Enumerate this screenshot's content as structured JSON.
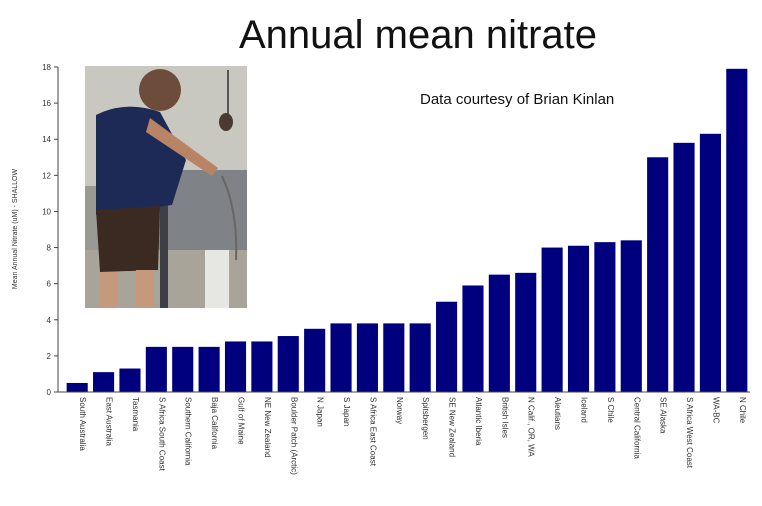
{
  "colors": {
    "bar": "#00007f",
    "axis": "#444444"
  },
  "chart_data": {
    "type": "bar",
    "title": "Annual mean nitrate",
    "annotation": "Data courtesy of Brian Kinlan",
    "ylabel": "Mean Annual Nitrate (uM) - SHALLOW",
    "xlabel": "",
    "ylim": [
      0,
      18
    ],
    "yticks": [
      0,
      2,
      4,
      6,
      8,
      10,
      12,
      14,
      16,
      18
    ],
    "grid": false,
    "categories": [
      "South Australia",
      "East Australia",
      "Tasmania",
      "S Africa South Coast",
      "Southern California",
      "Baja California",
      "Gulf of Maine",
      "NE New Zealand",
      "Boulder Patch (Arctic)",
      "N Japan",
      "S Japan",
      "S Africa East Coast",
      "Norway",
      "Spitsbergen",
      "SE New Zealand",
      "Atlantic Iberia",
      "British Isles",
      "N Calif., OR, WA",
      "Aleutians",
      "Iceland",
      "S Chile",
      "Central California",
      "SE Alaska",
      "S Africa West Coast",
      "WA-BC",
      "N Chile"
    ],
    "values": [
      0.5,
      1.1,
      1.3,
      2.5,
      2.5,
      2.5,
      2.8,
      2.8,
      3.1,
      3.5,
      3.8,
      3.8,
      3.8,
      3.8,
      5.0,
      5.9,
      6.5,
      6.6,
      8.0,
      8.1,
      8.3,
      8.4,
      13.0,
      13.8,
      14.3,
      17.9
    ]
  },
  "photo": {
    "description_icon": "person-on-boat-photo"
  }
}
